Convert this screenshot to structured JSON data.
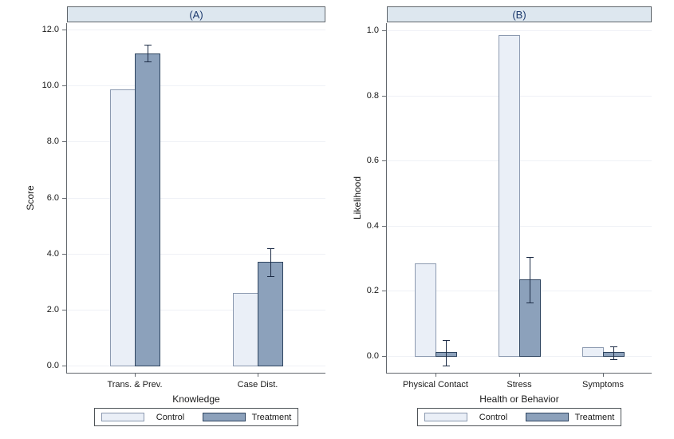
{
  "figure": {
    "colors": {
      "background": "#ffffff",
      "control_fill": "#eaeff7",
      "control_border": "#8c9ab0",
      "treatment_fill": "#8ca1bb",
      "treatment_border": "#2f4560",
      "error_bar": "#1c2b45",
      "grid": "#eff1f6",
      "axis": "#63686e",
      "header_fill": "#dde7ef",
      "header_border": "#60666c",
      "header_text": "#1c3a6e",
      "text": "#1a1a1a",
      "legend_border": "#4e5357"
    }
  },
  "legend": {
    "items": [
      {
        "name": "control",
        "label": "Control"
      },
      {
        "name": "treatment",
        "label": "Treatment"
      }
    ]
  },
  "chart_data": [
    {
      "type": "bar",
      "title": "(A)",
      "ylabel": "Score",
      "xlabel": "Knowledge",
      "ylim": [
        0,
        12
      ],
      "ytick_values": [
        0,
        2,
        4,
        6,
        8,
        10,
        12
      ],
      "ytick_labels": [
        "0.0",
        "2.0",
        "4.0",
        "6.0",
        "8.0",
        "10.0",
        "12.0"
      ],
      "grid": true,
      "legend_position": "bottom",
      "categories": [
        "Trans. & Prev.",
        "Case Dist."
      ],
      "series": [
        {
          "name": "Control",
          "values": [
            9.85,
            2.6
          ],
          "errors": [
            null,
            null
          ]
        },
        {
          "name": "Treatment",
          "values": [
            11.15,
            3.7
          ],
          "errors": [
            [
              10.85,
              11.45
            ],
            [
              3.2,
              4.2
            ]
          ]
        }
      ]
    },
    {
      "type": "bar",
      "title": "(B)",
      "ylabel": "Likelihood",
      "xlabel": "Health or Behavior",
      "ylim": [
        0,
        1
      ],
      "ytick_values": [
        0,
        0.2,
        0.4,
        0.6,
        0.8,
        1.0
      ],
      "ytick_labels": [
        "0.0",
        "0.2",
        "0.4",
        "0.6",
        "0.8",
        "1.0"
      ],
      "grid": true,
      "legend_position": "bottom",
      "categories": [
        "Physical Contact",
        "Stress",
        "Symptoms"
      ],
      "series": [
        {
          "name": "Control",
          "values": [
            0.285,
            0.985,
            0.028
          ],
          "errors": [
            null,
            null,
            null
          ]
        },
        {
          "name": "Treatment",
          "values": [
            0.012,
            0.235,
            0.012
          ],
          "errors": [
            [
              -0.03,
              0.05
            ],
            [
              0.165,
              0.305
            ],
            [
              -0.01,
              0.03
            ]
          ]
        }
      ]
    }
  ]
}
